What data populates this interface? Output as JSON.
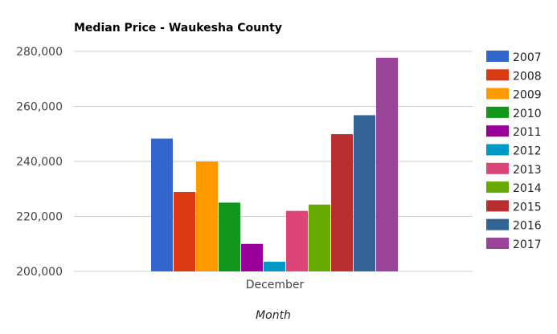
{
  "chart_data": {
    "type": "bar",
    "title": "Median Price - Waukesha County",
    "xlabel": "Month",
    "ylabel": "",
    "categories": [
      "December"
    ],
    "ylim": [
      200000,
      280000
    ],
    "yticks": [
      "200,000",
      "220,000",
      "240,000",
      "260,000",
      "280,000"
    ],
    "ytick_values": [
      200000,
      220000,
      240000,
      260000,
      280000
    ],
    "legend_position": "right",
    "grid": true,
    "series": [
      {
        "name": "2007",
        "values": [
          248300
        ],
        "color": "#3366cc"
      },
      {
        "name": "2008",
        "values": [
          228900
        ],
        "color": "#dc3912"
      },
      {
        "name": "2009",
        "values": [
          239900
        ],
        "color": "#ff9900"
      },
      {
        "name": "2010",
        "values": [
          225000
        ],
        "color": "#109618"
      },
      {
        "name": "2011",
        "values": [
          210000
        ],
        "color": "#990099"
      },
      {
        "name": "2012",
        "values": [
          203500
        ],
        "color": "#0099c6"
      },
      {
        "name": "2013",
        "values": [
          222000
        ],
        "color": "#dd4477"
      },
      {
        "name": "2014",
        "values": [
          224300
        ],
        "color": "#66aa00"
      },
      {
        "name": "2015",
        "values": [
          249900
        ],
        "color": "#b82e2e"
      },
      {
        "name": "2016",
        "values": [
          256800
        ],
        "color": "#316395"
      },
      {
        "name": "2017",
        "values": [
          277700
        ],
        "color": "#994499"
      }
    ]
  }
}
